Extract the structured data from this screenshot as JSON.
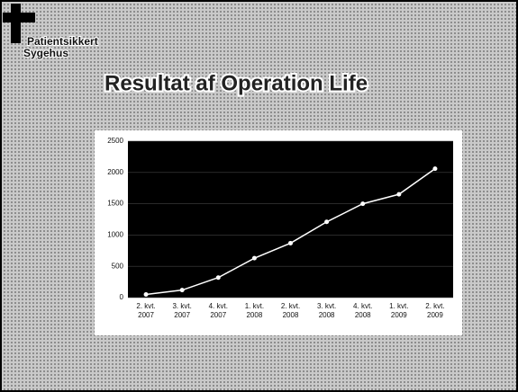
{
  "logo": {
    "line1": "Patientsikkert",
    "line2": "Sygehus"
  },
  "chart_data": {
    "type": "line",
    "title": "Resultat af Operation Life",
    "categories": [
      "2. kvt. 2007",
      "3. kvt. 2007",
      "4. kvt. 2007",
      "1. kvt. 2008",
      "2. kvt. 2008",
      "3. kvt. 2008",
      "4. kvt. 2008",
      "1. kvt. 2009",
      "2. kvt. 2009"
    ],
    "values": [
      50,
      120,
      320,
      630,
      870,
      1210,
      1500,
      1650,
      2060
    ],
    "color": "#ffffff",
    "ylim": [
      0,
      2500
    ],
    "yticks": [
      0,
      500,
      1000,
      1500,
      2000,
      2500
    ],
    "grid": true
  }
}
